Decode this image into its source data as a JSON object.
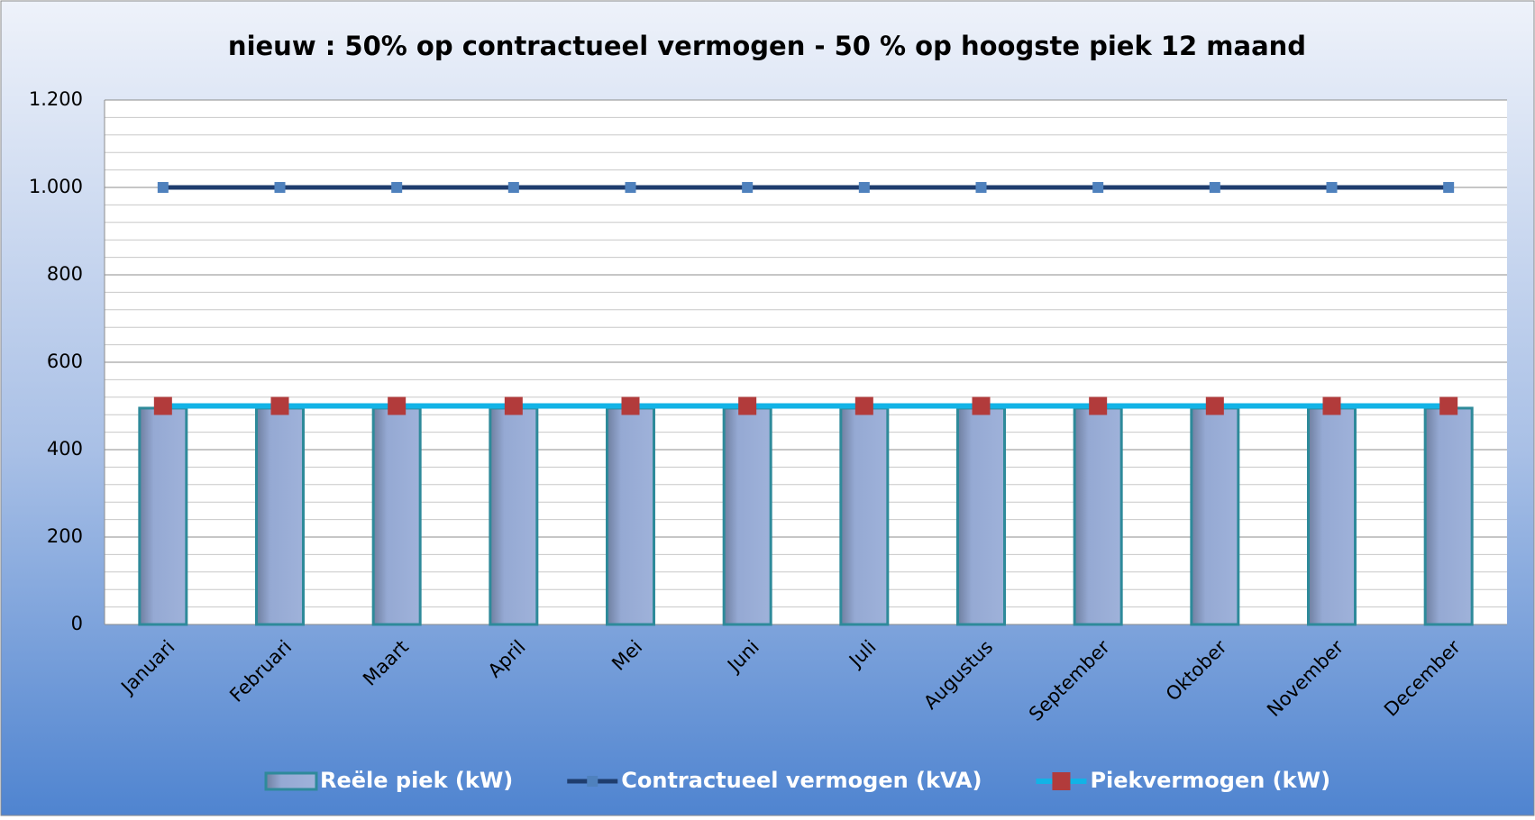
{
  "chart_data": {
    "type": "bar",
    "title": "nieuw : 50% op contractueel vermogen - 50 % op hoogste piek 12 maand",
    "categories": [
      "Januari",
      "Februari",
      "Maart",
      "April",
      "Mei",
      "Juni",
      "Juli",
      "Augustus",
      "September",
      "Oktober",
      "November",
      "December"
    ],
    "series": [
      {
        "name": "Reële piek (kW)",
        "type": "bar",
        "color": "#95a9d3",
        "values": [
          495,
          495,
          495,
          495,
          495,
          495,
          495,
          495,
          495,
          495,
          495,
          495
        ]
      },
      {
        "name": "Contractueel vermogen (kVA)",
        "type": "line",
        "color": "#1f3d6e",
        "marker_color": "#4f81bd",
        "values": [
          1000,
          1000,
          1000,
          1000,
          1000,
          1000,
          1000,
          1000,
          1000,
          1000,
          1000,
          1000
        ]
      },
      {
        "name": "Piekvermogen (kW)",
        "type": "line",
        "color": "#12b3e6",
        "marker_color": "#b23b3b",
        "values": [
          500,
          500,
          500,
          500,
          500,
          500,
          500,
          500,
          500,
          500,
          500,
          500
        ]
      }
    ],
    "ylim": [
      0,
      1200
    ],
    "yticks": [
      0,
      200,
      400,
      600,
      800,
      {
        "value": 1000,
        "label": "1.000"
      },
      {
        "value": 1200,
        "label": "1.200"
      }
    ],
    "minor_yticks": [
      40,
      80,
      120,
      160,
      240,
      280,
      320,
      360,
      440,
      480,
      520,
      560,
      640,
      680,
      720,
      760,
      840,
      880,
      920,
      960,
      1040,
      1080,
      1120,
      1160
    ],
    "grid": true,
    "legend": "bottom"
  }
}
